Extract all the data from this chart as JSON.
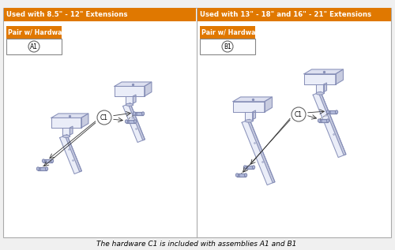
{
  "bg_color": "#f0f0f0",
  "panel_bg": "#ffffff",
  "border_color": "#999999",
  "part_fill_top": "#dde0f0",
  "part_fill_front": "#eaedf8",
  "part_fill_side": "#c8cce0",
  "part_edge": "#8890b8",
  "hardware_fill": "#b0b8d8",
  "hardware_edge": "#7880a8",
  "orange_color": "#e07800",
  "footnote": "The hardware C1 is included with assemblies A1 and B1",
  "panel1_title": "Used with 8.5\" - 12\" Extensions",
  "panel2_title": "Used with 13\" - 18\" and 16\" - 21\" Extensions",
  "panel1_label": "A1",
  "panel2_label": "B1",
  "hw_label": "Pair w/ Hardware"
}
